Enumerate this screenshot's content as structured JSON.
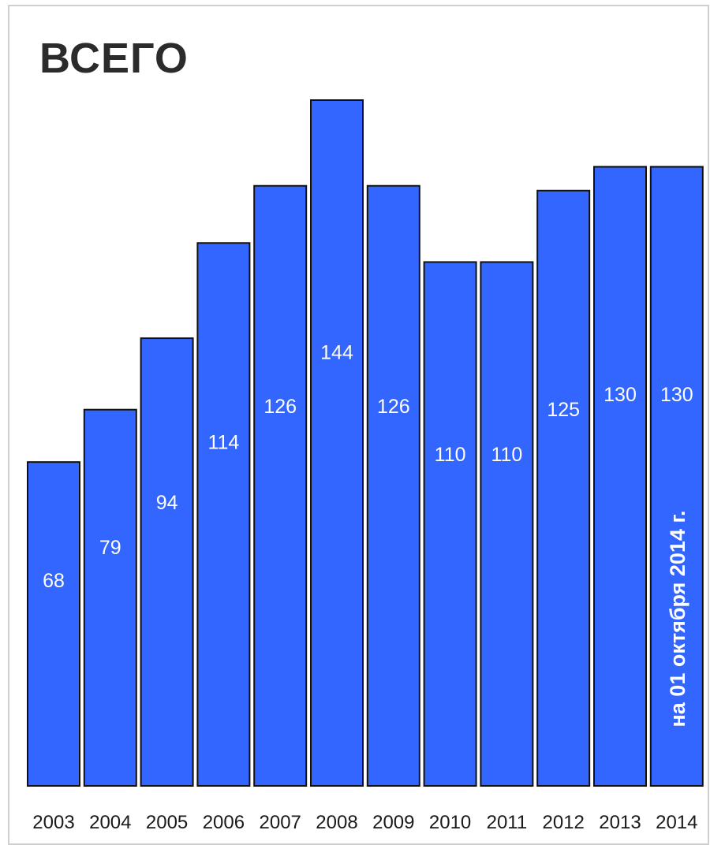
{
  "chart_data": {
    "type": "bar",
    "title": "ВСЕГО",
    "categories": [
      "2003",
      "2004",
      "2005",
      "2006",
      "2007",
      "2008",
      "2009",
      "2010",
      "2011",
      "2012",
      "2013",
      "2014"
    ],
    "values": [
      68,
      79,
      94,
      114,
      126,
      144,
      126,
      110,
      110,
      125,
      130,
      130
    ],
    "xlabel": "",
    "ylabel": "",
    "ylim": [
      0,
      144
    ],
    "grid": false,
    "legend": "none",
    "bar_color": "#3366ff",
    "annotations": [
      {
        "category": "2014",
        "text": "на 01 октября  2014 г."
      }
    ]
  }
}
